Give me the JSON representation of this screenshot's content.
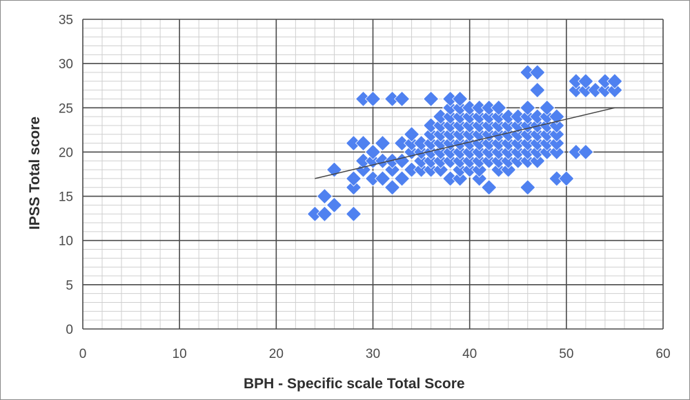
{
  "chart_data": {
    "type": "scatter",
    "title": "",
    "xlabel": "BPH - Specific scale Total Score",
    "ylabel": "IPSS Total score",
    "xlim": [
      0,
      60
    ],
    "ylim": [
      0,
      35
    ],
    "x_ticks": [
      0,
      10,
      20,
      30,
      40,
      50,
      60
    ],
    "y_ticks": [
      0,
      5,
      10,
      15,
      20,
      25,
      30,
      35
    ],
    "grid": "major and minor",
    "legend": "none",
    "marker": "diamond",
    "marker_color": "#4f81f0",
    "trendline_color": "#444444",
    "series": [
      {
        "points": [
          [
            24,
            13
          ],
          [
            25,
            13
          ],
          [
            25,
            15
          ],
          [
            26,
            14
          ],
          [
            26,
            18
          ],
          [
            28,
            13
          ],
          [
            28,
            16
          ],
          [
            28,
            17
          ],
          [
            28,
            21
          ],
          [
            29,
            18
          ],
          [
            29,
            19
          ],
          [
            29,
            21
          ],
          [
            29,
            26
          ],
          [
            30,
            17
          ],
          [
            30,
            19
          ],
          [
            30,
            20
          ],
          [
            30,
            26
          ],
          [
            31,
            17
          ],
          [
            31,
            19
          ],
          [
            31,
            21
          ],
          [
            32,
            16
          ],
          [
            32,
            18
          ],
          [
            32,
            19
          ],
          [
            32,
            26
          ],
          [
            33,
            17
          ],
          [
            33,
            19
          ],
          [
            33,
            21
          ],
          [
            33,
            26
          ],
          [
            34,
            18
          ],
          [
            34,
            20
          ],
          [
            34,
            21
          ],
          [
            34,
            22
          ],
          [
            35,
            18
          ],
          [
            35,
            19
          ],
          [
            35,
            20
          ],
          [
            35,
            21
          ],
          [
            36,
            18
          ],
          [
            36,
            19
          ],
          [
            36,
            20
          ],
          [
            36,
            21
          ],
          [
            36,
            22
          ],
          [
            36,
            23
          ],
          [
            36,
            26
          ],
          [
            37,
            18
          ],
          [
            37,
            19
          ],
          [
            37,
            20
          ],
          [
            37,
            21
          ],
          [
            37,
            22
          ],
          [
            37,
            23
          ],
          [
            37,
            24
          ],
          [
            38,
            17
          ],
          [
            38,
            19
          ],
          [
            38,
            20
          ],
          [
            38,
            21
          ],
          [
            38,
            22
          ],
          [
            38,
            23
          ],
          [
            38,
            24
          ],
          [
            38,
            25
          ],
          [
            38,
            26
          ],
          [
            39,
            17
          ],
          [
            39,
            18
          ],
          [
            39,
            19
          ],
          [
            39,
            20
          ],
          [
            39,
            21
          ],
          [
            39,
            22
          ],
          [
            39,
            23
          ],
          [
            39,
            24
          ],
          [
            39,
            25
          ],
          [
            39,
            26
          ],
          [
            40,
            18
          ],
          [
            40,
            19
          ],
          [
            40,
            20
          ],
          [
            40,
            21
          ],
          [
            40,
            22
          ],
          [
            40,
            23
          ],
          [
            40,
            24
          ],
          [
            40,
            25
          ],
          [
            41,
            17
          ],
          [
            41,
            18
          ],
          [
            41,
            19
          ],
          [
            41,
            20
          ],
          [
            41,
            21
          ],
          [
            41,
            22
          ],
          [
            41,
            23
          ],
          [
            41,
            24
          ],
          [
            41,
            25
          ],
          [
            42,
            16
          ],
          [
            42,
            19
          ],
          [
            42,
            20
          ],
          [
            42,
            21
          ],
          [
            42,
            22
          ],
          [
            42,
            23
          ],
          [
            42,
            24
          ],
          [
            42,
            25
          ],
          [
            43,
            18
          ],
          [
            43,
            19
          ],
          [
            43,
            20
          ],
          [
            43,
            21
          ],
          [
            43,
            22
          ],
          [
            43,
            23
          ],
          [
            43,
            24
          ],
          [
            43,
            25
          ],
          [
            44,
            18
          ],
          [
            44,
            19
          ],
          [
            44,
            20
          ],
          [
            44,
            21
          ],
          [
            44,
            22
          ],
          [
            44,
            23
          ],
          [
            44,
            24
          ],
          [
            45,
            19
          ],
          [
            45,
            20
          ],
          [
            45,
            21
          ],
          [
            45,
            22
          ],
          [
            45,
            23
          ],
          [
            45,
            24
          ],
          [
            46,
            16
          ],
          [
            46,
            19
          ],
          [
            46,
            20
          ],
          [
            46,
            21
          ],
          [
            46,
            22
          ],
          [
            46,
            23
          ],
          [
            46,
            24
          ],
          [
            46,
            25
          ],
          [
            46,
            29
          ],
          [
            47,
            19
          ],
          [
            47,
            20
          ],
          [
            47,
            21
          ],
          [
            47,
            22
          ],
          [
            47,
            23
          ],
          [
            47,
            24
          ],
          [
            47,
            27
          ],
          [
            47,
            29
          ],
          [
            48,
            20
          ],
          [
            48,
            21
          ],
          [
            48,
            22
          ],
          [
            48,
            23
          ],
          [
            48,
            24
          ],
          [
            48,
            25
          ],
          [
            49,
            17
          ],
          [
            49,
            20
          ],
          [
            49,
            21
          ],
          [
            49,
            22
          ],
          [
            49,
            23
          ],
          [
            49,
            24
          ],
          [
            50,
            17
          ],
          [
            51,
            20
          ],
          [
            51,
            27
          ],
          [
            51,
            28
          ],
          [
            52,
            20
          ],
          [
            52,
            27
          ],
          [
            52,
            28
          ],
          [
            53,
            27
          ],
          [
            54,
            27
          ],
          [
            54,
            28
          ],
          [
            55,
            27
          ],
          [
            55,
            28
          ]
        ]
      }
    ],
    "trendline": {
      "x": [
        24,
        55
      ],
      "y": [
        17,
        25
      ]
    }
  }
}
